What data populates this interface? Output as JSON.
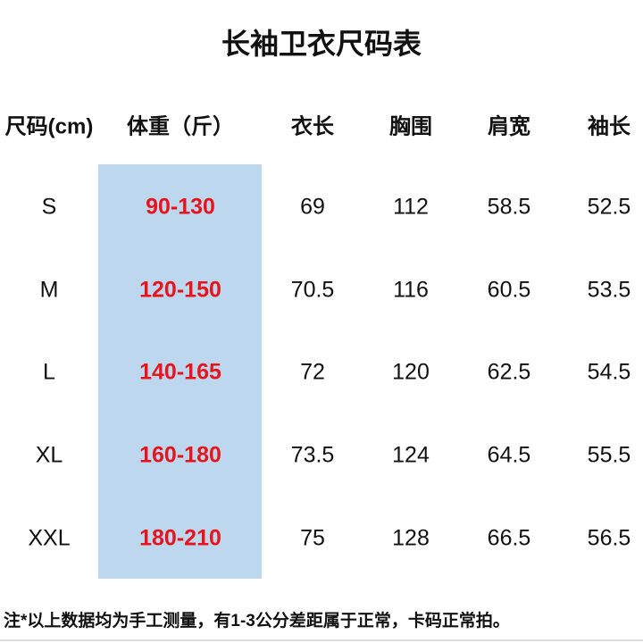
{
  "title": "长袖卫衣尺码表",
  "colors": {
    "highlight": "#bdd7ee",
    "weight_text": "#e8141c"
  },
  "table": {
    "headers": [
      "尺码(cm)",
      "体重（斤）",
      "衣长",
      "胸围",
      "肩宽",
      "袖长"
    ],
    "rows": [
      [
        "S",
        "90-130",
        "69",
        "112",
        "58.5",
        "52.5"
      ],
      [
        "M",
        "120-150",
        "70.5",
        "116",
        "60.5",
        "53.5"
      ],
      [
        "L",
        "140-165",
        "72",
        "120",
        "62.5",
        "54.5"
      ],
      [
        "XL",
        "160-180",
        "73.5",
        "124",
        "64.5",
        "55.5"
      ],
      [
        "XXL",
        "180-210",
        "75",
        "128",
        "66.5",
        "56.5"
      ]
    ]
  },
  "note": "注*以上数据均为手工测量，有1-3公分差距属于正常，卡码正常拍。"
}
